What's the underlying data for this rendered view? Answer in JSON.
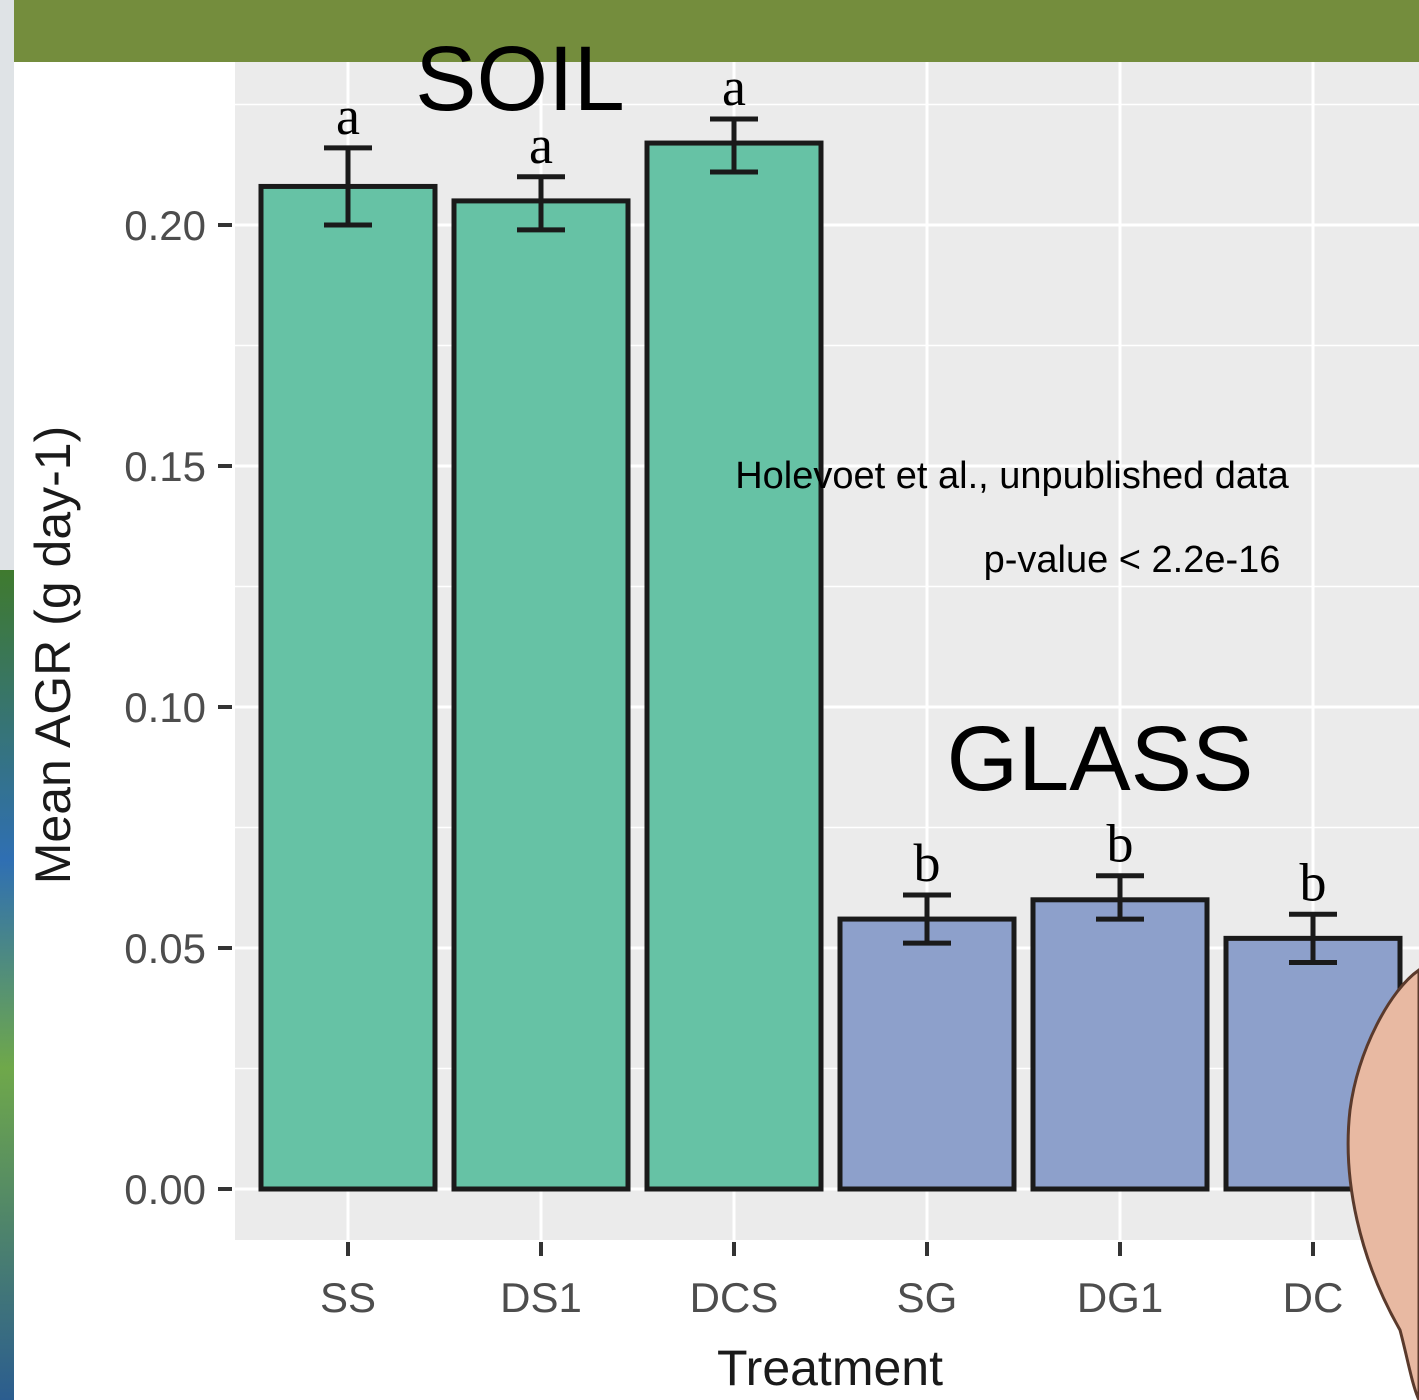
{
  "colors": {
    "soil_bar": "#66c2a5",
    "glass_bar": "#8da0cb",
    "panel_background": "#ebebeb",
    "gridline": "#ffffff",
    "header_bar": "#748d3d"
  },
  "annotations": {
    "soil_label": "SOIL",
    "glass_label": "GLASS",
    "source_note": "Holevoet et al., unpublished data",
    "p_value": "p-value < 2.2e-16"
  },
  "chart_data": {
    "type": "bar",
    "xlabel": "Treatment",
    "ylabel": "Mean AGR (g day-1)",
    "ylim": [
      0,
      0.225
    ],
    "yticks": [
      0.0,
      0.05,
      0.1,
      0.15,
      0.2
    ],
    "ytick_labels": [
      "0.00",
      "0.05",
      "0.10",
      "0.15",
      "0.20"
    ],
    "grid": true,
    "categories": [
      "SS",
      "DS1",
      "DCS",
      "SG",
      "DG1",
      "DC"
    ],
    "values": [
      0.208,
      0.205,
      0.217,
      0.056,
      0.06,
      0.052
    ],
    "error_low": [
      0.2,
      0.199,
      0.211,
      0.051,
      0.056,
      0.047
    ],
    "error_high": [
      0.216,
      0.21,
      0.222,
      0.061,
      0.065,
      0.057
    ],
    "significance_letters": [
      "a",
      "a",
      "a",
      "b",
      "b",
      "b"
    ],
    "groups": [
      "SOIL",
      "SOIL",
      "SOIL",
      "GLASS",
      "GLASS",
      "GLASS"
    ]
  }
}
